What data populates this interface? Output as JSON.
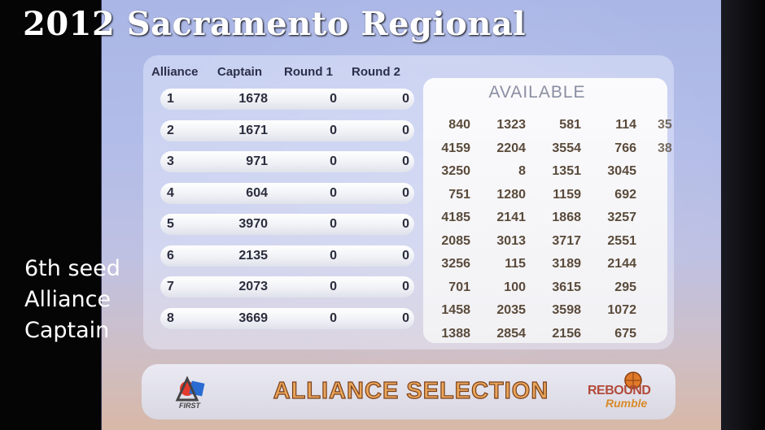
{
  "overlay": {
    "title": "2012 Sacramento Regional",
    "caption_lines": [
      "6th seed",
      "Alliance",
      "Captain"
    ]
  },
  "table": {
    "headers": [
      "Alliance",
      "Captain",
      "Round 1",
      "Round 2"
    ],
    "rows": [
      {
        "alliance": "1",
        "captain": "1678",
        "round1": "0",
        "round2": "0"
      },
      {
        "alliance": "2",
        "captain": "1671",
        "round1": "0",
        "round2": "0"
      },
      {
        "alliance": "3",
        "captain": "971",
        "round1": "0",
        "round2": "0"
      },
      {
        "alliance": "4",
        "captain": "604",
        "round1": "0",
        "round2": "0"
      },
      {
        "alliance": "5",
        "captain": "3970",
        "round1": "0",
        "round2": "0"
      },
      {
        "alliance": "6",
        "captain": "2135",
        "round1": "0",
        "round2": "0"
      },
      {
        "alliance": "7",
        "captain": "2073",
        "round1": "0",
        "round2": "0"
      },
      {
        "alliance": "8",
        "captain": "3669",
        "round1": "0",
        "round2": "0"
      }
    ]
  },
  "available": {
    "title": "AVAILABLE",
    "rows": [
      [
        "840",
        "1323",
        "581",
        "114",
        "35"
      ],
      [
        "4159",
        "2204",
        "3554",
        "766",
        "38"
      ],
      [
        "3250",
        "8",
        "1351",
        "3045"
      ],
      [
        "751",
        "1280",
        "1159",
        "692"
      ],
      [
        "4185",
        "2141",
        "1868",
        "3257"
      ],
      [
        "2085",
        "3013",
        "3717",
        "2551"
      ],
      [
        "3256",
        "115",
        "3189",
        "2144"
      ],
      [
        "701",
        "100",
        "3615",
        "295"
      ],
      [
        "1458",
        "2035",
        "3598",
        "1072"
      ],
      [
        "1388",
        "2854",
        "2156",
        "675"
      ]
    ]
  },
  "banner": {
    "text": "ALLIANCE SELECTION",
    "first_logo_text": "FIRST",
    "game_logo_top": "REBOUND",
    "game_logo_bottom": "Rumble"
  },
  "colors": {
    "banner_text": "#e9a55a",
    "team_numbers": "#5a4a3a"
  }
}
